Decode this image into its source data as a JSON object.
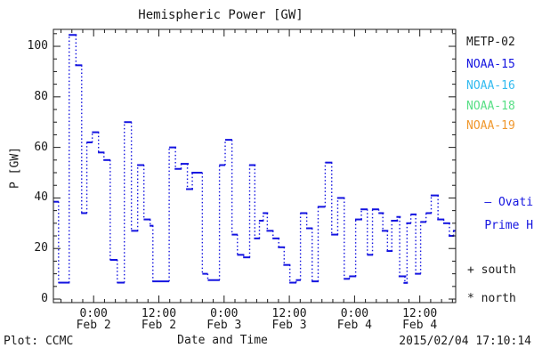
{
  "title": "Hemispheric Power [GW]",
  "axes": {
    "y": {
      "label": "P [GW]",
      "tick_values": [
        0,
        20,
        40,
        60,
        80,
        100
      ],
      "minor_step": 5,
      "range": [
        -1.4,
        106.7
      ]
    },
    "x": {
      "label": "Date and Time",
      "ticks": [
        {
          "time": "0:00",
          "date": "Feb 2",
          "hour": 0
        },
        {
          "time": "12:00",
          "date": "Feb 2",
          "hour": 12
        },
        {
          "time": "0:00",
          "date": "Feb 3",
          "hour": 24
        },
        {
          "time": "12:00",
          "date": "Feb 3",
          "hour": 36
        },
        {
          "time": "0:00",
          "date": "Feb 4",
          "hour": 48
        },
        {
          "time": "12:00",
          "date": "Feb 4",
          "hour": 60
        }
      ],
      "minor_step_hours": 2,
      "range_hours": [
        -7.4,
        66.6
      ]
    }
  },
  "legend": {
    "satellites": [
      {
        "label": "METP-02",
        "color": "#1a1a1a"
      },
      {
        "label": "NOAA-15",
        "color": "#1414e0"
      },
      {
        "label": "NOAA-16",
        "color": "#33bbf0"
      },
      {
        "label": "NOAA-18",
        "color": "#57df85"
      },
      {
        "label": "NOAA-19",
        "color": "#f0982e"
      }
    ],
    "model": {
      "line1": "— Ovation",
      "line2": "Prime HPI",
      "color": "#1414e0"
    },
    "south_marker": "+ south",
    "north_marker": "* north"
  },
  "footer": {
    "left": "Plot: CCMC",
    "right": "2015/02/04 17:10:14"
  },
  "chart_data": {
    "type": "line",
    "title": "Hemispheric Power [GW]",
    "xlabel": "Date and Time",
    "ylabel": "P [GW]",
    "x_unit": "hours since 2015-02-02 00:00",
    "xlim_hours": [
      -7.4,
      66.6
    ],
    "ylim": [
      -1.4,
      106.7
    ],
    "grid": false,
    "line_color": "#1414e0",
    "style": "horizontal solid segments joined by dotted vertical connectors",
    "series": [
      {
        "name": "Ovation Prime HPI",
        "segments_t1_t2_gw": [
          [
            -7.4,
            -6.4,
            38.5
          ],
          [
            -6.5,
            -4.4,
            6.5
          ],
          [
            -4.6,
            -3.1,
            104.5
          ],
          [
            -3.4,
            -2.1,
            92.5
          ],
          [
            -2.3,
            -1.2,
            34
          ],
          [
            -1.3,
            -0.2,
            62
          ],
          [
            -0.3,
            1.0,
            66
          ],
          [
            0.8,
            2.0,
            58
          ],
          [
            1.8,
            3.1,
            55
          ],
          [
            3.0,
            4.4,
            15.5
          ],
          [
            4.3,
            5.7,
            6.5
          ],
          [
            5.6,
            7.0,
            70
          ],
          [
            6.9,
            8.2,
            27
          ],
          [
            8.0,
            9.3,
            53
          ],
          [
            9.2,
            10.5,
            31.5
          ],
          [
            10.3,
            11.0,
            29
          ],
          [
            10.8,
            13.9,
            7
          ],
          [
            13.9,
            15.2,
            60
          ],
          [
            14.9,
            16.2,
            51.5
          ],
          [
            16.0,
            17.5,
            53.5
          ],
          [
            17.0,
            18.3,
            43.5
          ],
          [
            18.0,
            20.0,
            50
          ],
          [
            20.0,
            21.0,
            10
          ],
          [
            21.0,
            23.2,
            7.5
          ],
          [
            23.1,
            24.2,
            53
          ],
          [
            24.2,
            25.5,
            63
          ],
          [
            25.4,
            26.5,
            25.5
          ],
          [
            26.4,
            27.7,
            17.5
          ],
          [
            27.5,
            28.8,
            16.5
          ],
          [
            28.6,
            29.8,
            53
          ],
          [
            29.5,
            30.6,
            24
          ],
          [
            30.4,
            31.3,
            31
          ],
          [
            31.1,
            32.1,
            34
          ],
          [
            31.8,
            33.1,
            27
          ],
          [
            32.9,
            34.2,
            24
          ],
          [
            33.9,
            35.2,
            20.5
          ],
          [
            34.9,
            36.2,
            13.5
          ],
          [
            36.0,
            37.3,
            6.5
          ],
          [
            37.2,
            38.1,
            7.5
          ],
          [
            38.0,
            39.3,
            34
          ],
          [
            39.1,
            40.3,
            28
          ],
          [
            40.1,
            41.4,
            7
          ],
          [
            41.2,
            42.6,
            36.5
          ],
          [
            42.6,
            43.9,
            54
          ],
          [
            43.7,
            45.0,
            25.5
          ],
          [
            44.8,
            46.2,
            40
          ],
          [
            46.0,
            47.1,
            8
          ],
          [
            47.0,
            48.3,
            9
          ],
          [
            48.1,
            49.4,
            31.5
          ],
          [
            49.1,
            50.4,
            35.5
          ],
          [
            50.3,
            51.4,
            17.5
          ],
          [
            51.2,
            52.5,
            35.5
          ],
          [
            52.4,
            53.4,
            34
          ],
          [
            53.0,
            54.2,
            27
          ],
          [
            53.9,
            55.0,
            19
          ],
          [
            54.7,
            56.0,
            31
          ],
          [
            55.7,
            56.5,
            32.5
          ],
          [
            56.1,
            57.5,
            9
          ],
          [
            57.0,
            57.8,
            6.4
          ],
          [
            57.5,
            58.4,
            30
          ],
          [
            58.3,
            59.4,
            33.5
          ],
          [
            59.1,
            60.2,
            10
          ],
          [
            60.1,
            61.2,
            30.5
          ],
          [
            61.1,
            62.2,
            34
          ],
          [
            62.0,
            63.5,
            41
          ],
          [
            63.2,
            64.5,
            31.5
          ],
          [
            64.3,
            65.6,
            30
          ],
          [
            65.3,
            66.3,
            25
          ],
          [
            66.1,
            66.6,
            27
          ]
        ]
      }
    ]
  }
}
